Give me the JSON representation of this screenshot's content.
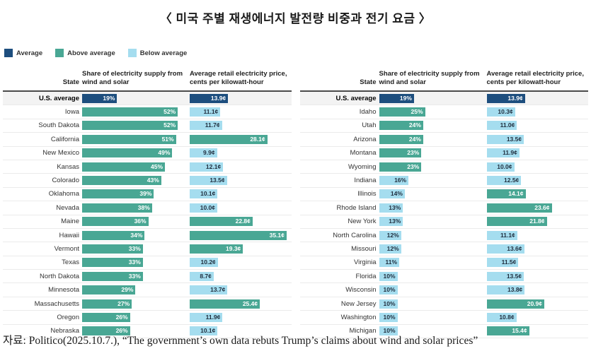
{
  "title": "〈 미국 주별 재생에너지 발전량 비중과 전기 요금 〉",
  "legend": [
    {
      "name": "average",
      "label": "Average",
      "color": "#1d4e7e"
    },
    {
      "name": "above-average",
      "label": "Above average",
      "color": "#49a794"
    },
    {
      "name": "below-average",
      "label": "Below average",
      "color": "#a5ddef"
    }
  ],
  "columns": {
    "state": "State",
    "share": "Share of electricity supply from wind and solar",
    "price": "Average retail electricity price, cents per kilowatt-hour"
  },
  "colors": {
    "avg": "#1d4e7e",
    "above": "#49a794",
    "below": "#a5ddef",
    "text_on_dark": "#ffffff",
    "text_on_light": "#1f2d3d"
  },
  "source": "자료: Politico(2025.10.7.), “The government’s own data rebuts Trump’s claims about wind and solar prices”",
  "chart_data": {
    "type": "bar",
    "orientation": "horizontal",
    "title": "미국 주별 재생에너지 발전량 비중과 전기 요금",
    "series_labels": [
      "Share of electricity supply from wind and solar (%)",
      "Average retail electricity price (cents per kilowatt-hour)"
    ],
    "color_coding": {
      "avg": "U.S. average (dark navy)",
      "above": "Above average (teal)",
      "below": "Below average (light blue)"
    },
    "us_average": {
      "share_pct": 19,
      "price_cents": 13.9
    },
    "tables": [
      {
        "rows": [
          {
            "state": "U.S. average",
            "share": 19,
            "share_label": "19%",
            "share_level": "avg",
            "price": 13.9,
            "price_label": "13.9¢",
            "price_level": "avg"
          },
          {
            "state": "Iowa",
            "share": 52,
            "share_label": "52%",
            "share_level": "above",
            "price": 11.1,
            "price_label": "11.1¢",
            "price_level": "below"
          },
          {
            "state": "South Dakota",
            "share": 52,
            "share_label": "52%",
            "share_level": "above",
            "price": 11.7,
            "price_label": "11.7¢",
            "price_level": "below"
          },
          {
            "state": "California",
            "share": 51,
            "share_label": "51%",
            "share_level": "above",
            "price": 28.1,
            "price_label": "28.1¢",
            "price_level": "above"
          },
          {
            "state": "New Mexico",
            "share": 49,
            "share_label": "49%",
            "share_level": "above",
            "price": 9.9,
            "price_label": "9.9¢",
            "price_level": "below"
          },
          {
            "state": "Kansas",
            "share": 45,
            "share_label": "45%",
            "share_level": "above",
            "price": 12.1,
            "price_label": "12.1¢",
            "price_level": "below"
          },
          {
            "state": "Colorado",
            "share": 43,
            "share_label": "43%",
            "share_level": "above",
            "price": 13.5,
            "price_label": "13.5¢",
            "price_level": "below"
          },
          {
            "state": "Oklahoma",
            "share": 39,
            "share_label": "39%",
            "share_level": "above",
            "price": 10.1,
            "price_label": "10.1¢",
            "price_level": "below"
          },
          {
            "state": "Nevada",
            "share": 38,
            "share_label": "38%",
            "share_level": "above",
            "price": 10.0,
            "price_label": "10.0¢",
            "price_level": "below"
          },
          {
            "state": "Maine",
            "share": 36,
            "share_label": "36%",
            "share_level": "above",
            "price": 22.8,
            "price_label": "22.8¢",
            "price_level": "above"
          },
          {
            "state": "Hawaii",
            "share": 34,
            "share_label": "34%",
            "share_level": "above",
            "price": 35.1,
            "price_label": "35.1¢",
            "price_level": "above"
          },
          {
            "state": "Vermont",
            "share": 33,
            "share_label": "33%",
            "share_level": "above",
            "price": 19.3,
            "price_label": "19.3¢",
            "price_level": "above"
          },
          {
            "state": "Texas",
            "share": 33,
            "share_label": "33%",
            "share_level": "above",
            "price": 10.2,
            "price_label": "10.2¢",
            "price_level": "below"
          },
          {
            "state": "North Dakota",
            "share": 33,
            "share_label": "33%",
            "share_level": "above",
            "price": 8.7,
            "price_label": "8.7¢",
            "price_level": "below"
          },
          {
            "state": "Minnesota",
            "share": 29,
            "share_label": "29%",
            "share_level": "above",
            "price": 13.7,
            "price_label": "13.7¢",
            "price_level": "below"
          },
          {
            "state": "Massachusetts",
            "share": 27,
            "share_label": "27%",
            "share_level": "above",
            "price": 25.4,
            "price_label": "25.4¢",
            "price_level": "above"
          },
          {
            "state": "Oregon",
            "share": 26,
            "share_label": "26%",
            "share_level": "above",
            "price": 11.9,
            "price_label": "11.9¢",
            "price_level": "below"
          },
          {
            "state": "Nebraska",
            "share": 26,
            "share_label": "26%",
            "share_level": "above",
            "price": 10.1,
            "price_label": "10.1¢",
            "price_level": "below"
          }
        ]
      },
      {
        "rows": [
          {
            "state": "U.S. average",
            "share": 19,
            "share_label": "19%",
            "share_level": "avg",
            "price": 13.9,
            "price_label": "13.9¢",
            "price_level": "avg"
          },
          {
            "state": "Idaho",
            "share": 25,
            "share_label": "25%",
            "share_level": "above",
            "price": 10.3,
            "price_label": "10.3¢",
            "price_level": "below"
          },
          {
            "state": "Utah",
            "share": 24,
            "share_label": "24%",
            "share_level": "above",
            "price": 11.0,
            "price_label": "11.0¢",
            "price_level": "below"
          },
          {
            "state": "Arizona",
            "share": 24,
            "share_label": "24%",
            "share_level": "above",
            "price": 13.5,
            "price_label": "13.5¢",
            "price_level": "below"
          },
          {
            "state": "Montana",
            "share": 23,
            "share_label": "23%",
            "share_level": "above",
            "price": 11.9,
            "price_label": "11.9¢",
            "price_level": "below"
          },
          {
            "state": "Wyoming",
            "share": 23,
            "share_label": "23%",
            "share_level": "above",
            "price": 10.0,
            "price_label": "10.0¢",
            "price_level": "below"
          },
          {
            "state": "Indiana",
            "share": 16,
            "share_label": "16%",
            "share_level": "below",
            "price": 12.5,
            "price_label": "12.5¢",
            "price_level": "below"
          },
          {
            "state": "Illinois",
            "share": 14,
            "share_label": "14%",
            "share_level": "below",
            "price": 14.1,
            "price_label": "14.1¢",
            "price_level": "above"
          },
          {
            "state": "Rhode Island",
            "share": 13,
            "share_label": "13%",
            "share_level": "below",
            "price": 23.6,
            "price_label": "23.6¢",
            "price_level": "above"
          },
          {
            "state": "New York",
            "share": 13,
            "share_label": "13%",
            "share_level": "below",
            "price": 21.8,
            "price_label": "21.8¢",
            "price_level": "above"
          },
          {
            "state": "North Carolina",
            "share": 12,
            "share_label": "12%",
            "share_level": "below",
            "price": 11.1,
            "price_label": "11.1¢",
            "price_level": "below"
          },
          {
            "state": "Missouri",
            "share": 12,
            "share_label": "12%",
            "share_level": "below",
            "price": 13.6,
            "price_label": "13.6¢",
            "price_level": "below"
          },
          {
            "state": "Virginia",
            "share": 11,
            "share_label": "11%",
            "share_level": "below",
            "price": 11.5,
            "price_label": "11.5¢",
            "price_level": "below"
          },
          {
            "state": "Florida",
            "share": 10,
            "share_label": "10%",
            "share_level": "below",
            "price": 13.5,
            "price_label": "13.5¢",
            "price_level": "below"
          },
          {
            "state": "Wisconsin",
            "share": 10,
            "share_label": "10%",
            "share_level": "below",
            "price": 13.8,
            "price_label": "13.8¢",
            "price_level": "below"
          },
          {
            "state": "New Jersey",
            "share": 10,
            "share_label": "10%",
            "share_level": "below",
            "price": 20.9,
            "price_label": "20.9¢",
            "price_level": "above"
          },
          {
            "state": "Washington",
            "share": 10,
            "share_label": "10%",
            "share_level": "below",
            "price": 10.8,
            "price_label": "10.8¢",
            "price_level": "below"
          },
          {
            "state": "Michigan",
            "share": 10,
            "share_label": "10%",
            "share_level": "below",
            "price": 15.4,
            "price_label": "15.4¢",
            "price_level": "above"
          }
        ]
      }
    ]
  }
}
